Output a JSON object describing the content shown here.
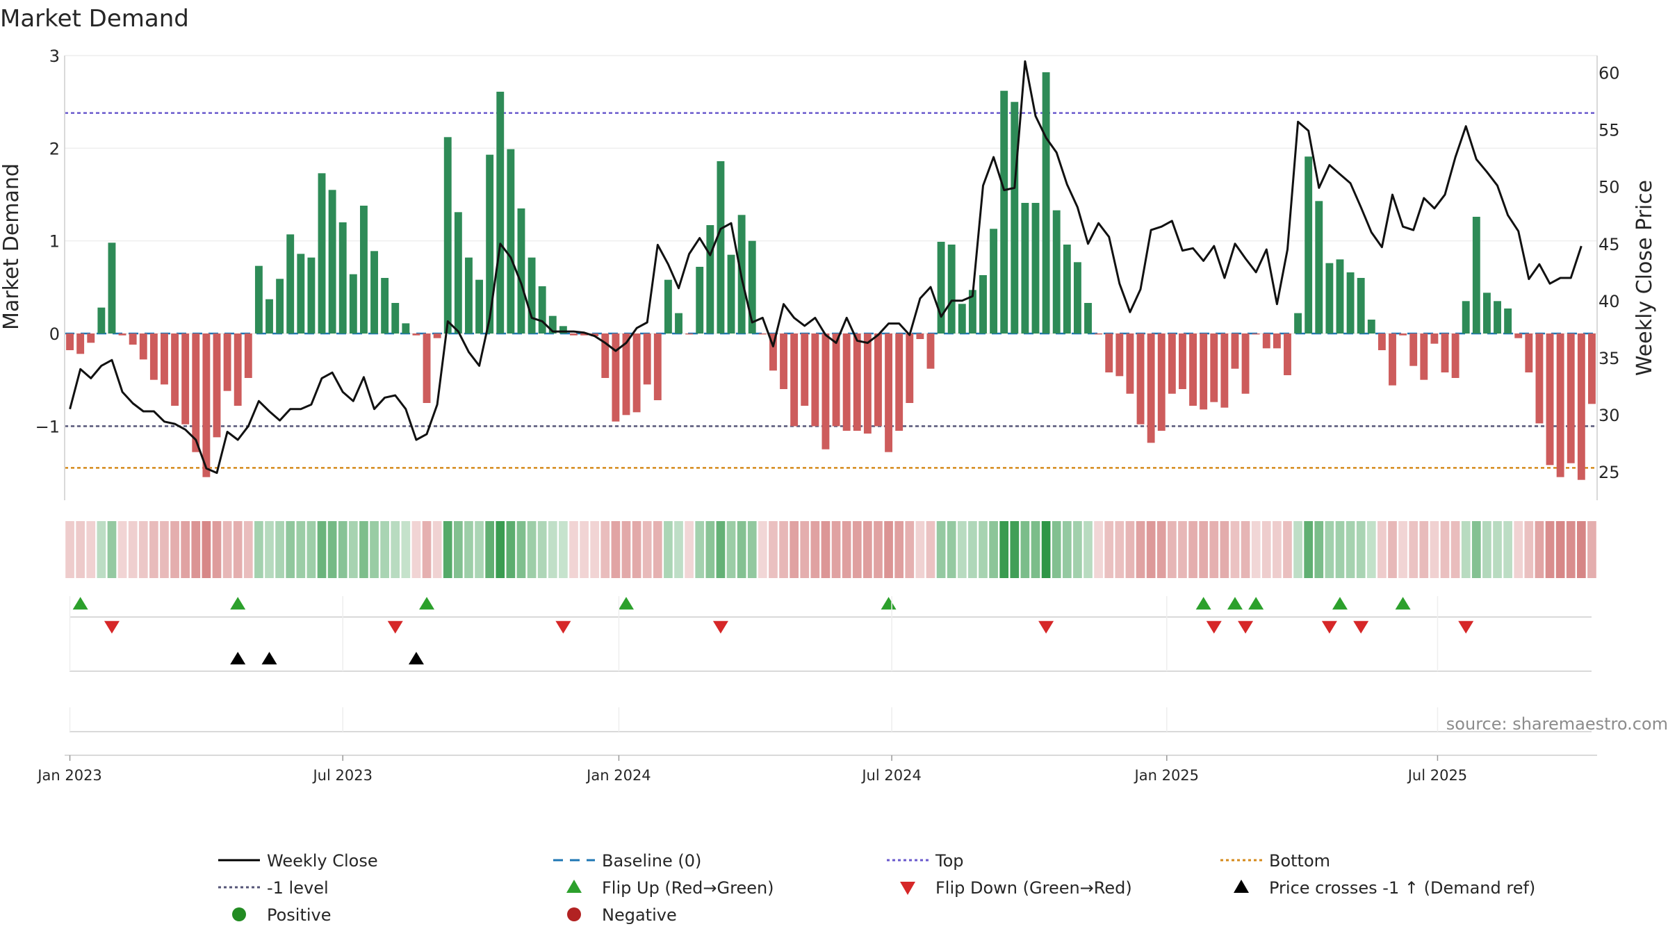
{
  "chart_data": {
    "type": "bar",
    "title": "Market Demand",
    "ylabel_left": "Market Demand",
    "ylabel_right": "Weekly Close Price",
    "ylim_left": [
      -1.8,
      3.0
    ],
    "ylim_right": [
      22.5,
      61.5
    ],
    "yticks_left": [
      {
        "v": 3,
        "label": "3"
      },
      {
        "v": 2,
        "label": "2"
      },
      {
        "v": 1,
        "label": "1"
      },
      {
        "v": 0,
        "label": "0"
      },
      {
        "v": -1,
        "label": "−1"
      }
    ],
    "yticks_right": [
      {
        "v": 60,
        "label": "60"
      },
      {
        "v": 55,
        "label": "55"
      },
      {
        "v": 50,
        "label": "50"
      },
      {
        "v": 45,
        "label": "45"
      },
      {
        "v": 40,
        "label": "40"
      },
      {
        "v": 35,
        "label": "35"
      },
      {
        "v": 30,
        "label": "30"
      },
      {
        "v": 25,
        "label": "25"
      }
    ],
    "start_week": 2,
    "xticks": [
      {
        "label": "Jan 2023",
        "week": 0
      },
      {
        "label": "Jul 2023",
        "week": 26
      },
      {
        "label": "Jan 2024",
        "week": 52.3
      },
      {
        "label": "Jul 2024",
        "week": 78.3
      },
      {
        "label": "Jan 2025",
        "week": 104.5
      },
      {
        "label": "Jul 2025",
        "week": 130.3
      }
    ],
    "top_level": 2.38,
    "minus_one_level": -1,
    "bottom_level": -1.45,
    "series": [
      {
        "name": "Market Demand",
        "values": [
          -0.18,
          -0.22,
          -0.1,
          0.28,
          0.98,
          -0.02,
          -0.12,
          -0.28,
          -0.5,
          -0.55,
          -0.78,
          -0.98,
          -1.28,
          -1.55,
          -1.12,
          -0.62,
          -0.78,
          -0.48,
          0.73,
          0.37,
          0.59,
          1.07,
          0.86,
          0.82,
          1.73,
          1.55,
          1.2,
          0.64,
          1.38,
          0.89,
          0.6,
          0.33,
          0.11,
          -0.02,
          -0.75,
          -0.05,
          2.12,
          1.31,
          0.82,
          0.58,
          1.93,
          2.61,
          1.99,
          1.35,
          0.82,
          0.51,
          0.19,
          0.08,
          -0.02,
          -0.02,
          -0.03,
          -0.48,
          -0.95,
          -0.88,
          -0.85,
          -0.55,
          -0.72,
          0.58,
          0.22,
          -0.01,
          0.72,
          1.17,
          1.86,
          0.85,
          1.28,
          1.0,
          -0.01,
          -0.4,
          -0.6,
          -1.0,
          -0.78,
          -1.0,
          -1.25,
          -1.0,
          -1.05,
          -1.05,
          -1.08,
          -1.0,
          -1.28,
          -1.05,
          -0.75,
          -0.06,
          -0.38,
          0.99,
          0.96,
          0.32,
          0.47,
          0.63,
          1.13,
          2.62,
          2.5,
          1.41,
          1.41,
          2.82,
          1.33,
          0.96,
          0.77,
          0.33,
          -0.01,
          -0.42,
          -0.46,
          -0.65,
          -0.98,
          -1.18,
          -1.05,
          -0.65,
          -0.6,
          -0.78,
          -0.82,
          -0.74,
          -0.8,
          -0.38,
          -0.65,
          -0.01,
          -0.16,
          -0.16,
          -0.45,
          0.22,
          1.91,
          1.43,
          0.76,
          0.8,
          0.66,
          0.6,
          0.15,
          -0.18,
          -0.56,
          -0.02,
          -0.35,
          -0.5,
          -0.11,
          -0.42,
          -0.48,
          0.35,
          1.26,
          0.44,
          0.35,
          0.27,
          -0.05,
          -0.42,
          -0.97,
          -1.42,
          -1.55,
          -1.4,
          -1.58,
          -0.76
        ]
      },
      {
        "name": "Weekly Close",
        "values": [
          30.5,
          34.0,
          33.2,
          34.3,
          34.8,
          32.0,
          31.0,
          30.3,
          30.3,
          29.4,
          29.2,
          28.7,
          27.8,
          25.3,
          24.9,
          28.5,
          27.8,
          29.0,
          31.2,
          30.3,
          29.5,
          30.5,
          30.5,
          30.9,
          33.2,
          33.7,
          32.0,
          31.2,
          33.3,
          30.5,
          31.5,
          31.7,
          30.5,
          27.8,
          28.3,
          30.9,
          38.2,
          37.3,
          35.5,
          34.3,
          38.5,
          45.0,
          43.8,
          41.5,
          38.5,
          38.2,
          37.3,
          37.3,
          37.3,
          37.2,
          36.9,
          36.3,
          35.6,
          36.3,
          37.6,
          38.1,
          44.9,
          43.2,
          41.1,
          44.1,
          45.5,
          44.0,
          46.3,
          46.8,
          42.0,
          38.1,
          38.5,
          36.0,
          39.7,
          38.5,
          37.8,
          38.5,
          37.0,
          36.3,
          38.5,
          36.5,
          36.3,
          37.0,
          38.0,
          38.0,
          37.0,
          40.2,
          41.2,
          38.6,
          40.0,
          40.0,
          40.4,
          50.1,
          52.6,
          49.7,
          49.9,
          61.0,
          56.2,
          54.3,
          53.0,
          50.2,
          48.2,
          45.0,
          46.8,
          45.6,
          41.5,
          39.0,
          41.0,
          46.2,
          46.5,
          47.0,
          44.4,
          44.6,
          43.5,
          44.8,
          42.0,
          45.0,
          43.7,
          42.5,
          44.5,
          39.7,
          44.5,
          55.7,
          54.9,
          49.9,
          51.9,
          51.1,
          50.3,
          48.2,
          46.0,
          44.7,
          49.3,
          46.5,
          46.2,
          49.0,
          48.1,
          49.3,
          52.6,
          55.3,
          52.4,
          51.3,
          50.1,
          47.5,
          46.1,
          41.9,
          43.2,
          41.5,
          42.0,
          42.0,
          44.8
        ]
      }
    ],
    "flip_up_weeks": [
      3,
      18,
      36,
      55,
      80,
      110,
      113,
      115,
      123,
      129
    ],
    "flip_down_weeks": [
      6,
      33,
      49,
      64,
      95,
      111,
      114,
      122,
      125,
      135
    ],
    "price_cross_weeks": [
      18,
      21,
      35
    ],
    "legend": [
      {
        "label": "Weekly Close",
        "kind": "line",
        "color": "#000000"
      },
      {
        "label": "Baseline (0)",
        "kind": "dash",
        "color": "#1f77b4"
      },
      {
        "label": "Top",
        "kind": "dot",
        "color": "#6a5acd"
      },
      {
        "label": "Bottom",
        "kind": "dot",
        "color": "#d58a1b"
      },
      {
        "label": "-1 level",
        "kind": "dot",
        "color": "#555577"
      },
      {
        "label": "Flip Up (Red→Green)",
        "kind": "tri-up",
        "color": "#2ca02c"
      },
      {
        "label": "Flip Down (Green→Red)",
        "kind": "tri-down",
        "color": "#d62728"
      },
      {
        "label": "Price crosses -1 ↑ (Demand ref)",
        "kind": "tri-up",
        "color": "#000000"
      },
      {
        "label": "Positive",
        "kind": "circle",
        "color": "#228b22"
      },
      {
        "label": "Negative",
        "kind": "circle",
        "color": "#b22222"
      }
    ],
    "legend_position": "bottom-center",
    "source": "source: sharemaestro.com"
  },
  "colors": {
    "positive_bar": "#2e8b57",
    "negative_bar": "#cd5c5c",
    "weekly_close": "#111111",
    "baseline": "#1f77b4",
    "top": "#6a5acd",
    "minus_one": "#555577",
    "bottom": "#d58a1b",
    "flip_up": "#2ca02c",
    "flip_down": "#d62728",
    "price_cross": "#000000",
    "axis": "#d9d9d9",
    "grid": "#eeeeee"
  }
}
